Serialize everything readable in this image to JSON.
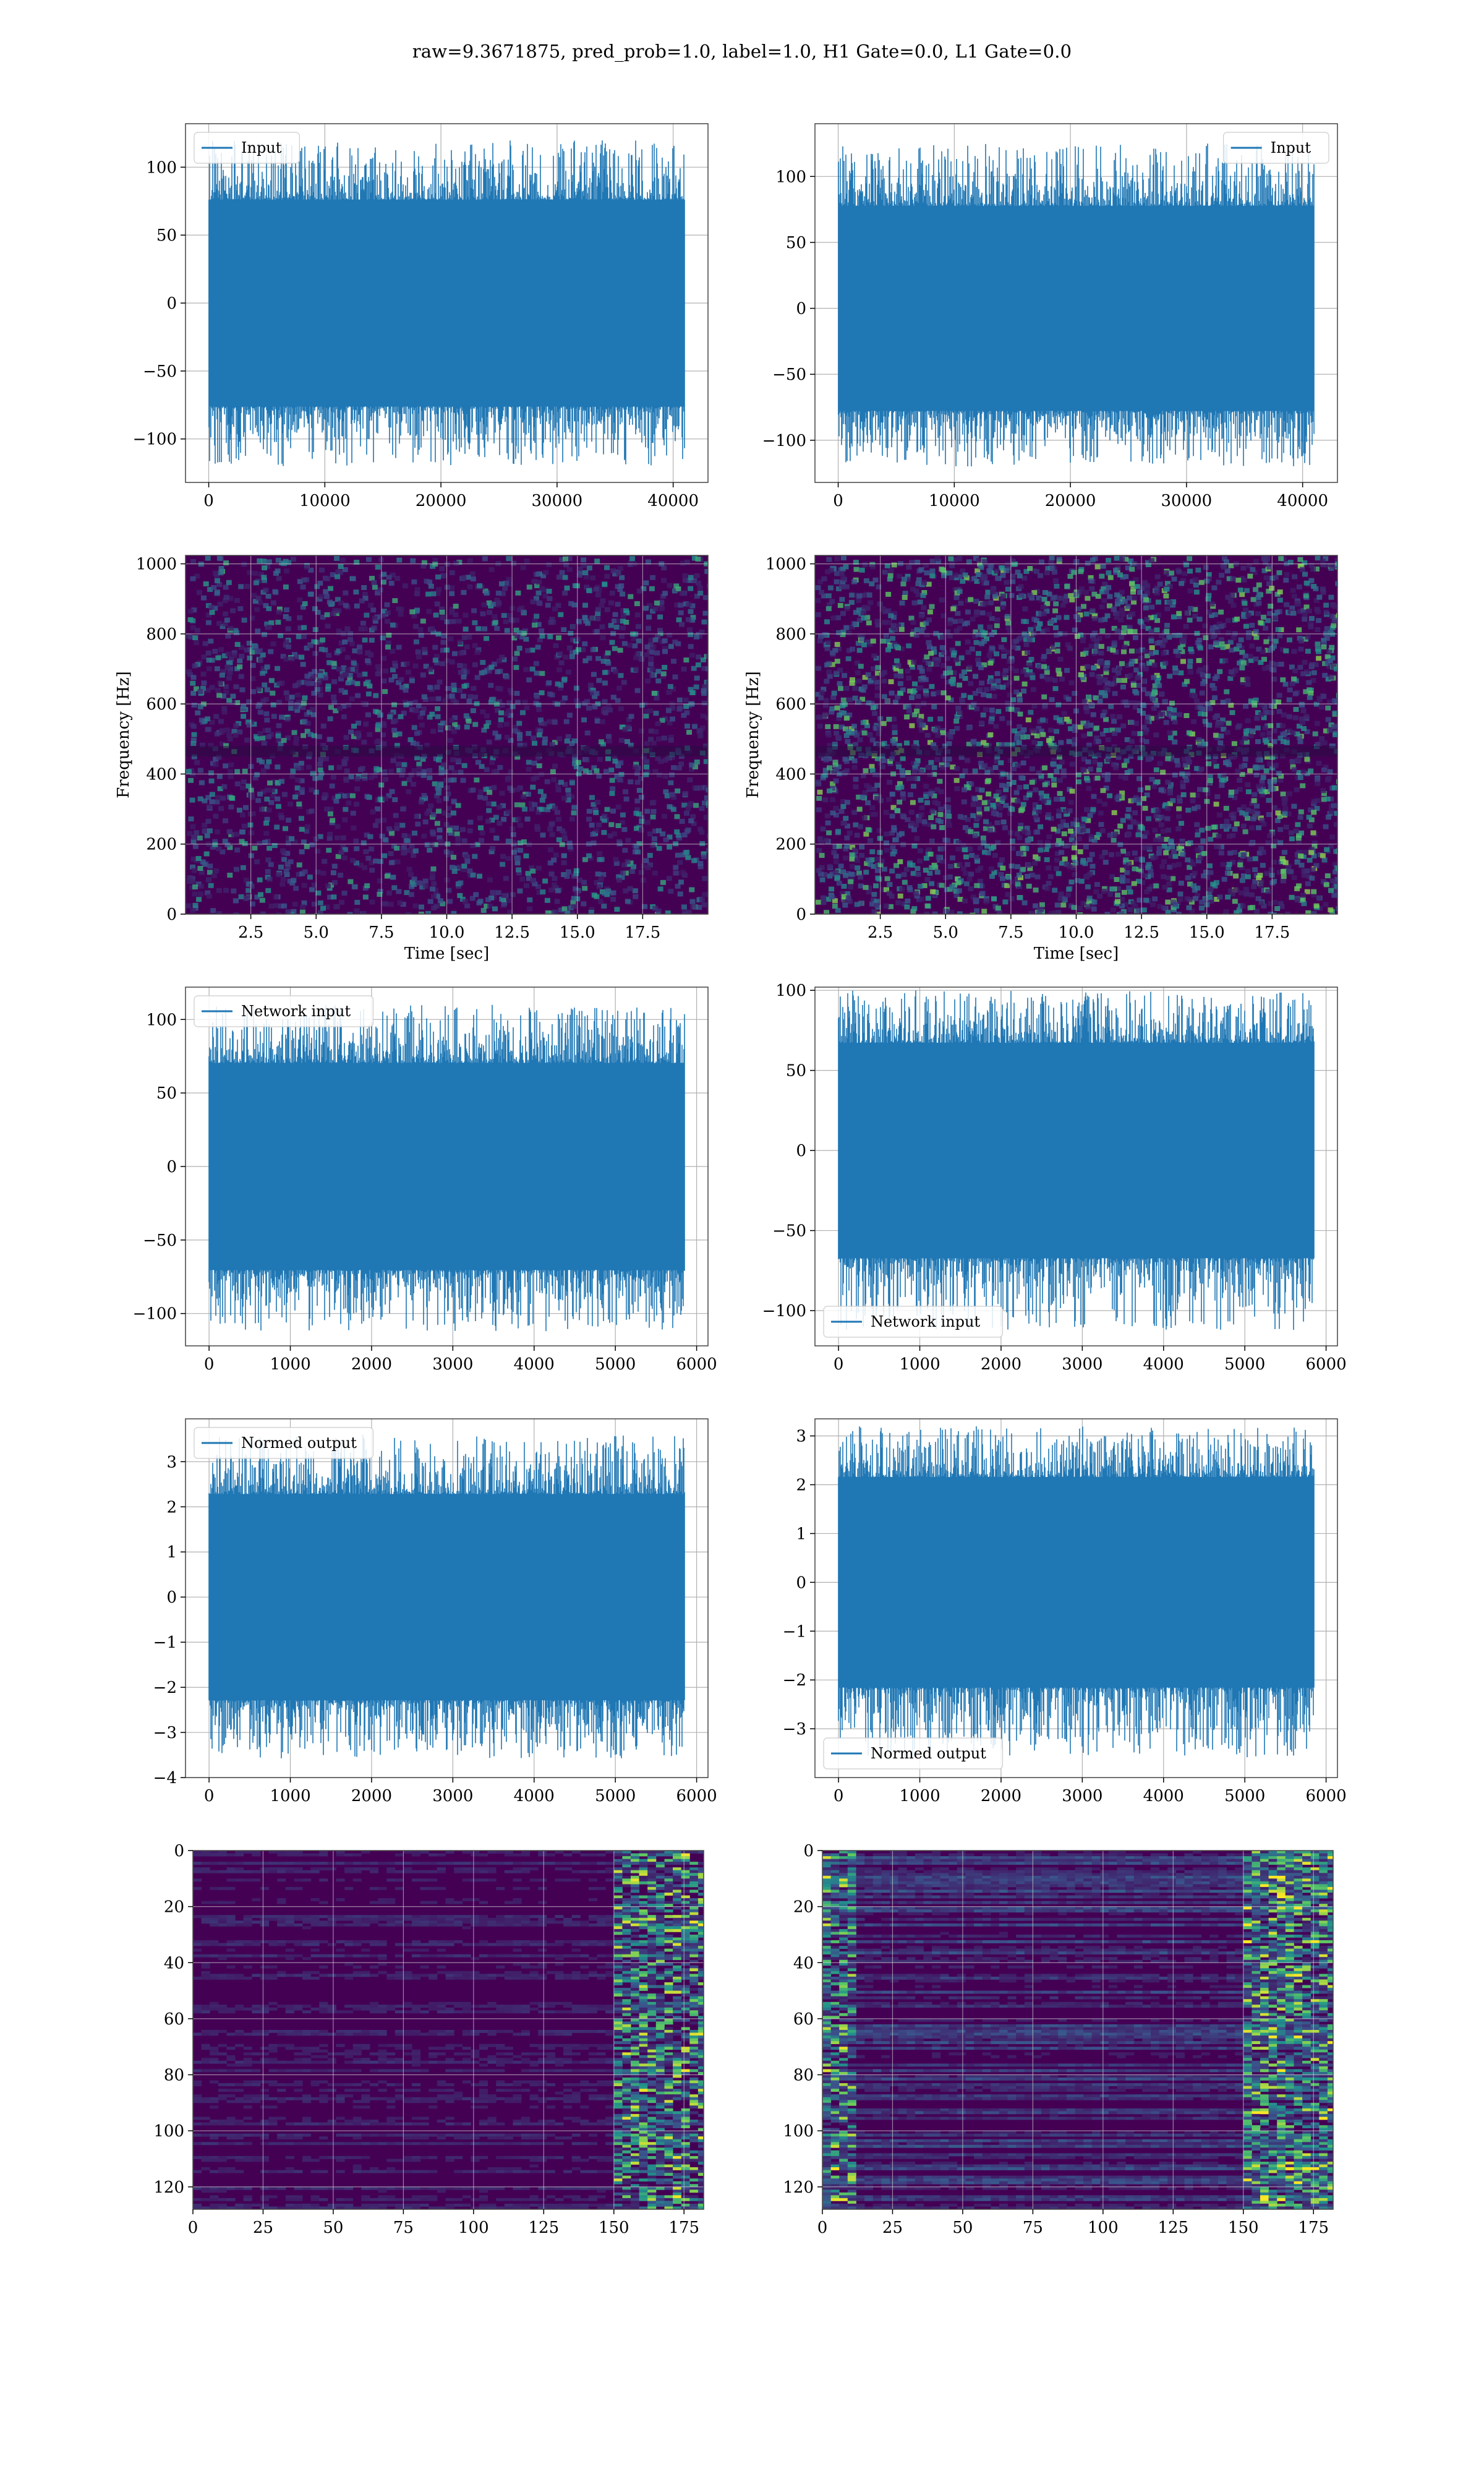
{
  "figure": {
    "title": "raw=9.3671875, pred_prob=1.0, label=1.0, H1 Gate=0.0, L1 Gate=0.0"
  },
  "colors": {
    "series": "#1f77b4",
    "grid": "#b0b0b0",
    "viridis_low": "#440154",
    "viridis_mid": "#21918c",
    "viridis_high": "#fde725"
  },
  "chart_data": [
    {
      "id": "r1c1",
      "type": "line",
      "row": 0,
      "col": 0,
      "series": [
        {
          "name": "Input",
          "n_points": 40960,
          "range": [
            -120,
            120
          ],
          "profile": "flat"
        }
      ],
      "xlim": [
        -2000,
        43000
      ],
      "ylim": [
        -132,
        132
      ],
      "xticks": [
        0,
        10000,
        20000,
        30000,
        40000
      ],
      "yticks": [
        -100,
        -50,
        0,
        50,
        100
      ],
      "legend": "upper-left",
      "grid": true,
      "xlabel": "",
      "ylabel": ""
    },
    {
      "id": "r1c2",
      "type": "line",
      "row": 0,
      "col": 1,
      "series": [
        {
          "name": "Input",
          "n_points": 40960,
          "range": [
            -120,
            125
          ],
          "profile": "flat"
        }
      ],
      "xlim": [
        -2000,
        43000
      ],
      "ylim": [
        -132,
        140
      ],
      "xticks": [
        0,
        10000,
        20000,
        30000,
        40000
      ],
      "yticks": [
        -100,
        -50,
        0,
        50,
        100
      ],
      "legend": "upper-right",
      "grid": true,
      "xlabel": "",
      "ylabel": ""
    },
    {
      "id": "r2c1",
      "type": "heatmap",
      "row": 1,
      "col": 0,
      "xlim": [
        0,
        20
      ],
      "ylim": [
        0,
        1024
      ],
      "xticks": [
        "2.5",
        "5.0",
        "7.5",
        "10.0",
        "12.5",
        "15.0",
        "17.5"
      ],
      "yticks": [
        0,
        200,
        400,
        600,
        800,
        1000
      ],
      "xlabel": "Time [sec]",
      "ylabel": "Frequency [Hz]",
      "grid": true,
      "colormap": "viridis"
    },
    {
      "id": "r2c2",
      "type": "heatmap",
      "row": 1,
      "col": 1,
      "xlim": [
        0,
        20
      ],
      "ylim": [
        0,
        1024
      ],
      "xticks": [
        "2.5",
        "5.0",
        "7.5",
        "10.0",
        "12.5",
        "15.0",
        "17.5"
      ],
      "yticks": [
        0,
        200,
        400,
        600,
        800,
        1000
      ],
      "xlabel": "Time [sec]",
      "ylabel": "Frequency [Hz]",
      "grid": true,
      "colormap": "viridis"
    },
    {
      "id": "r3c1",
      "type": "line",
      "row": 2,
      "col": 0,
      "series": [
        {
          "name": "Network input",
          "n_points": 5850,
          "range": [
            -112,
            110
          ],
          "profile": "flat"
        }
      ],
      "xlim": [
        -290,
        6140
      ],
      "ylim": [
        -122,
        122
      ],
      "xticks": [
        0,
        1000,
        2000,
        3000,
        4000,
        5000,
        6000
      ],
      "yticks": [
        -100,
        -50,
        0,
        50,
        100
      ],
      "legend": "upper-left",
      "grid": true,
      "xlabel": "",
      "ylabel": ""
    },
    {
      "id": "r3c2",
      "type": "line",
      "row": 2,
      "col": 1,
      "series": [
        {
          "name": "Network input",
          "n_points": 5850,
          "range": [
            -112,
            100
          ],
          "profile": "flat"
        }
      ],
      "xlim": [
        -290,
        6140
      ],
      "ylim": [
        -122,
        102
      ],
      "xticks": [
        0,
        1000,
        2000,
        3000,
        4000,
        5000,
        6000
      ],
      "yticks": [
        -100,
        -50,
        0,
        50,
        100
      ],
      "legend": "lower-left",
      "grid": true,
      "xlabel": "",
      "ylabel": ""
    },
    {
      "id": "r4c1",
      "type": "line",
      "row": 3,
      "col": 0,
      "series": [
        {
          "name": "Normed output",
          "n_points": 5850,
          "range": [
            -3.6,
            3.6
          ],
          "profile": "flat"
        }
      ],
      "xlim": [
        -290,
        6140
      ],
      "ylim": [
        -4.0,
        3.95
      ],
      "xticks": [
        0,
        1000,
        2000,
        3000,
        4000,
        5000,
        6000
      ],
      "yticks": [
        -4,
        -3,
        -2,
        -1,
        0,
        1,
        2,
        3
      ],
      "legend": "upper-left",
      "grid": true,
      "xlabel": "",
      "ylabel": ""
    },
    {
      "id": "r4c2",
      "type": "line",
      "row": 3,
      "col": 1,
      "series": [
        {
          "name": "Normed output",
          "n_points": 5850,
          "range": [
            -3.6,
            3.2
          ],
          "profile": "flat"
        }
      ],
      "xlim": [
        -290,
        6140
      ],
      "ylim": [
        -4.0,
        3.35
      ],
      "xticks": [
        0,
        1000,
        2000,
        3000,
        4000,
        5000,
        6000
      ],
      "yticks": [
        -3,
        -2,
        -1,
        0,
        1,
        2,
        3
      ],
      "legend": "lower-left",
      "grid": true,
      "xlabel": "",
      "ylabel": ""
    },
    {
      "id": "r5c1",
      "type": "heatmap",
      "row": 4,
      "col": 0,
      "xlim": [
        0,
        182
      ],
      "ylim": [
        128,
        0
      ],
      "xticks": [
        0,
        25,
        50,
        75,
        100,
        125,
        150,
        175
      ],
      "yticks": [
        0,
        20,
        40,
        60,
        80,
        100,
        120
      ],
      "grid": true,
      "colormap": "viridis",
      "xlabel": "",
      "ylabel": ""
    },
    {
      "id": "r5c2",
      "type": "heatmap",
      "row": 4,
      "col": 1,
      "xlim": [
        0,
        182
      ],
      "ylim": [
        128,
        0
      ],
      "xticks": [
        0,
        25,
        50,
        75,
        100,
        125,
        150,
        175
      ],
      "yticks": [
        0,
        20,
        40,
        60,
        80,
        100,
        120
      ],
      "grid": true,
      "colormap": "viridis",
      "xlabel": "",
      "ylabel": ""
    }
  ]
}
